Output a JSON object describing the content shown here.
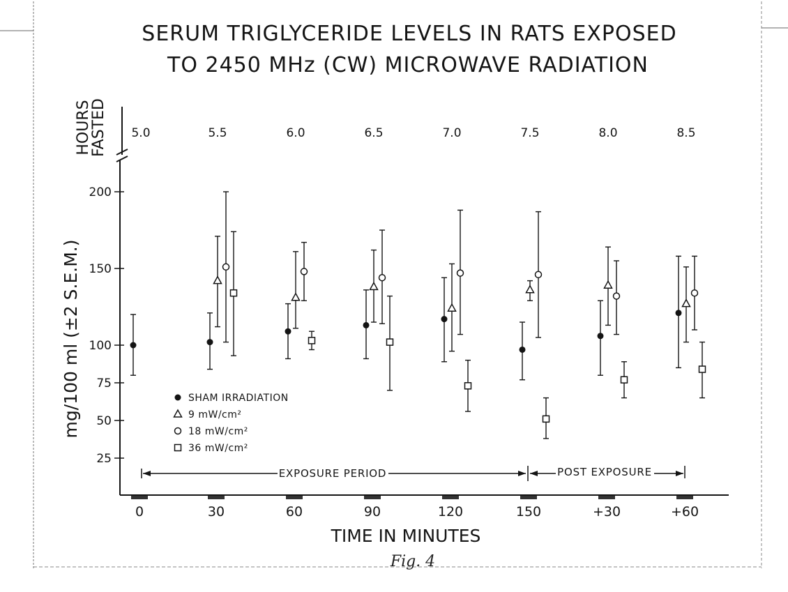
{
  "chart_data": {
    "type": "scatter",
    "title_line1": "SERUM TRIGLYCERIDE LEVELS IN RATS EXPOSED",
    "title_line2": "TO 2450 MHz (CW) MICROWAVE RADIATION",
    "xlabel": "TIME IN MINUTES",
    "ylabel": "mg/100 ml (±2 S.E.M.)",
    "top_axis_label": [
      "HOURS",
      "FASTED"
    ],
    "categories": [
      "0",
      "30",
      "60",
      "90",
      "120",
      "150",
      "+30",
      "+60"
    ],
    "hours_fasted": [
      "5.0",
      "5.5",
      "6.0",
      "6.5",
      "7.0",
      "7.5",
      "8.0",
      "8.5"
    ],
    "yticks": [
      "200",
      "150",
      "100",
      "75",
      "50",
      "25"
    ],
    "ylim": [
      0,
      200
    ],
    "series": [
      {
        "name": "SHAM IRRADIATION",
        "marker": "filled-circle",
        "values": [
          100,
          102,
          109,
          113,
          117,
          97,
          106,
          121
        ],
        "err_low": [
          80,
          84,
          91,
          91,
          89,
          77,
          80,
          85
        ],
        "err_high": [
          120,
          121,
          127,
          136,
          144,
          115,
          129,
          158
        ]
      },
      {
        "name": "9 mW/cm²",
        "marker": "open-triangle",
        "values": [
          null,
          142,
          131,
          138,
          124,
          136,
          139,
          127
        ],
        "err_low": [
          null,
          112,
          111,
          115,
          96,
          129,
          113,
          102
        ],
        "err_high": [
          null,
          171,
          161,
          162,
          153,
          142,
          164,
          151
        ]
      },
      {
        "name": "18 mW/cm²",
        "marker": "open-circle",
        "values": [
          null,
          151,
          148,
          144,
          147,
          146,
          132,
          134
        ],
        "err_low": [
          null,
          102,
          129,
          114,
          107,
          105,
          107,
          110
        ],
        "err_high": [
          null,
          200,
          167,
          175,
          188,
          187,
          155,
          158
        ]
      },
      {
        "name": "36 mW/cm²",
        "marker": "open-square",
        "values": [
          null,
          134,
          103,
          102,
          73,
          51,
          77,
          84
        ],
        "err_low": [
          null,
          93,
          97,
          70,
          56,
          38,
          65,
          65
        ],
        "err_high": [
          null,
          174,
          109,
          132,
          90,
          65,
          89,
          102
        ]
      }
    ],
    "legend_position": "lower-left",
    "annotations": {
      "exposure_period": "EXPOSURE PERIOD",
      "post_exposure": "POST EXPOSURE"
    },
    "signature": "Fig. 4"
  }
}
